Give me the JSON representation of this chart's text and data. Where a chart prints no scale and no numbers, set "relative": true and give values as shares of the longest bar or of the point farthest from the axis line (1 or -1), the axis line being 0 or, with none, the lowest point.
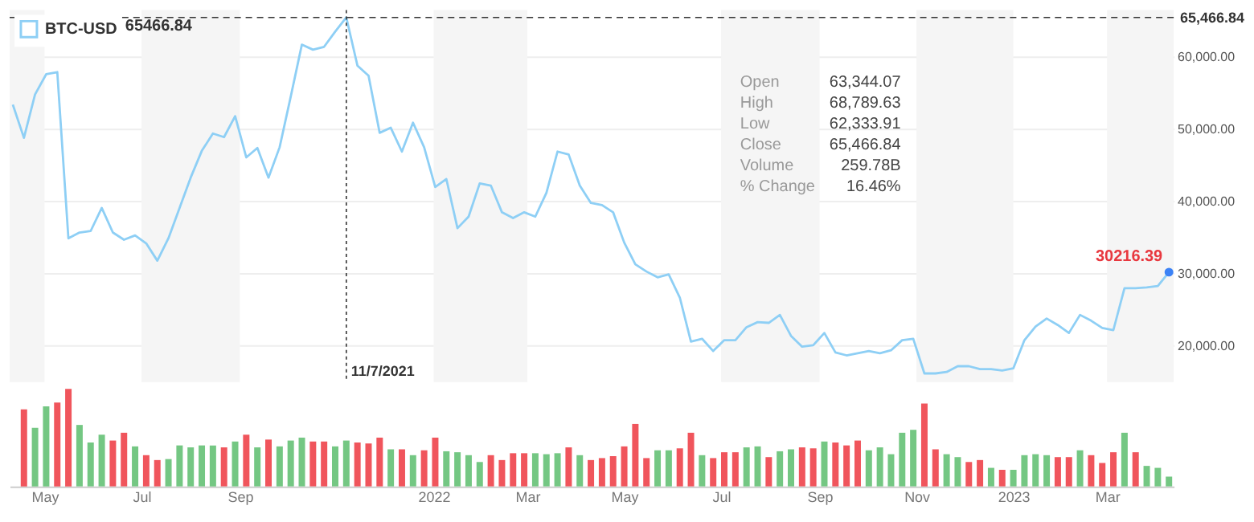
{
  "chart_data": [
    {
      "type": "line",
      "x": [
        "2021-04-11",
        "2021-04-18",
        "2021-04-25",
        "2021-05-02",
        "2021-05-09",
        "2021-05-16",
        "2021-05-23",
        "2021-05-30",
        "2021-06-06",
        "2021-06-13",
        "2021-06-20",
        "2021-06-27",
        "2021-07-04",
        "2021-07-11",
        "2021-07-18",
        "2021-07-25",
        "2021-08-01",
        "2021-08-08",
        "2021-08-15",
        "2021-08-22",
        "2021-08-29",
        "2021-09-05",
        "2021-09-12",
        "2021-09-19",
        "2021-09-26",
        "2021-10-03",
        "2021-10-10",
        "2021-10-17",
        "2021-10-24",
        "2021-10-31",
        "2021-11-07",
        "2021-11-14",
        "2021-11-21",
        "2021-11-28",
        "2021-12-05",
        "2021-12-12",
        "2021-12-19",
        "2021-12-26",
        "2022-01-02",
        "2022-01-09",
        "2022-01-16",
        "2022-01-23",
        "2022-01-30",
        "2022-02-06",
        "2022-02-13",
        "2022-02-20",
        "2022-02-27",
        "2022-03-06",
        "2022-03-13",
        "2022-03-20",
        "2022-03-27",
        "2022-04-03",
        "2022-04-10",
        "2022-04-17",
        "2022-04-24",
        "2022-05-01",
        "2022-05-08",
        "2022-05-15",
        "2022-05-22",
        "2022-05-29",
        "2022-06-05",
        "2022-06-12",
        "2022-06-19",
        "2022-06-26",
        "2022-07-03",
        "2022-07-10",
        "2022-07-17",
        "2022-07-24",
        "2022-07-31",
        "2022-08-07",
        "2022-08-14",
        "2022-08-21",
        "2022-08-28",
        "2022-09-04",
        "2022-09-11",
        "2022-09-18",
        "2022-09-25",
        "2022-10-02",
        "2022-10-09",
        "2022-10-16",
        "2022-10-23",
        "2022-10-30",
        "2022-11-06",
        "2022-11-13",
        "2022-11-20",
        "2022-11-27",
        "2022-12-04",
        "2022-12-11",
        "2022-12-18",
        "2022-12-25",
        "2023-01-01",
        "2023-01-08",
        "2023-01-15",
        "2023-01-22",
        "2023-01-29",
        "2023-02-05",
        "2023-02-12",
        "2023-02-19",
        "2023-02-26",
        "2023-03-05",
        "2023-03-12",
        "2023-03-19",
        "2023-03-26",
        "2023-04-02",
        "2023-04-09"
      ],
      "series": [
        {
          "name": "BTC-USD",
          "color": "#8ecff5",
          "values": [
            53400,
            48800,
            54800,
            57600,
            57900,
            34900,
            35700,
            35900,
            39100,
            35700,
            34700,
            35300,
            34200,
            31800,
            34900,
            39100,
            43300,
            47000,
            49400,
            48900,
            51800,
            46100,
            47400,
            43300,
            47500,
            54500,
            61700,
            61000,
            61400,
            63500,
            65466.84,
            58800,
            57400,
            49500,
            50200,
            46900,
            50900,
            47500,
            42000,
            43100,
            36300,
            37900,
            42500,
            42200,
            38500,
            37700,
            38500,
            37900,
            41200,
            46900,
            46500,
            42200,
            39800,
            39500,
            38500,
            34300,
            31300,
            30300,
            29500,
            29900,
            26700,
            20600,
            21000,
            19300,
            20800,
            20800,
            22600,
            23300,
            23200,
            24300,
            21400,
            19900,
            20100,
            21800,
            19100,
            18700,
            19000,
            19300,
            19000,
            19400,
            20800,
            21000,
            16200,
            16200,
            16400,
            17200,
            17200,
            16800,
            16800,
            16600,
            16900,
            20800,
            22700,
            23800,
            22900,
            21800,
            24300,
            23500,
            22500,
            22200,
            28000,
            28000,
            28100,
            28300,
            30216.39
          ]
        }
      ],
      "xlim": [
        "2021-04-09",
        "2023-04-12"
      ],
      "tick_labels": "y",
      "ylim": [
        15000,
        66500
      ],
      "yticks": [
        {
          "value": 20000,
          "label": "20,000.00"
        },
        {
          "value": 30000,
          "label": "30,000.00"
        },
        {
          "value": 40000,
          "label": "40,000.00"
        },
        {
          "value": 50000,
          "label": "50,000.00"
        },
        {
          "value": 60000,
          "label": "60,000.00"
        }
      ],
      "grid": "y",
      "legend": "top left",
      "ref_lines": [
        {
          "axis": "x",
          "value": "2021-11-07",
          "label": "11/7/2021",
          "line_style": "dotted",
          "color": "#333333"
        },
        {
          "axis": "y",
          "value": 65466.84,
          "label": "65,466.84",
          "line_style": "dashed",
          "color": "#333333"
        }
      ],
      "bands": [
        {
          "axis": "x",
          "from": "2021-04-09",
          "to": "2021-05-01",
          "color": "#f5f5f5"
        },
        {
          "axis": "x",
          "from": "2021-07-01",
          "to": "2021-09-01",
          "color": "#f5f5f5"
        },
        {
          "axis": "x",
          "from": "2022-01-01",
          "to": "2022-03-01",
          "color": "#f5f5f5"
        },
        {
          "axis": "x",
          "from": "2022-07-01",
          "to": "2022-09-01",
          "color": "#f5f5f5"
        },
        {
          "axis": "x",
          "from": "2022-11-01",
          "to": "2023-01-01",
          "color": "#f5f5f5"
        },
        {
          "axis": "x",
          "from": "2023-03-01",
          "to": "2023-04-12",
          "color": "#f5f5f5"
        }
      ],
      "annotations": [
        "65466.84",
        "Open",
        "63,344.07",
        "High",
        "68,789.63",
        "Low",
        "62,333.91",
        "Close",
        "65,466.84",
        "Volume",
        "259.78B",
        "% Change",
        "16.46%",
        {
          "text": "30216.39",
          "x": "2023-04-09",
          "y": 30216.39
        }
      ]
    },
    {
      "type": "bar",
      "relative": true,
      "tick_labels": "x",
      "xlim": [
        "2021-04-09",
        "2023-04-12"
      ],
      "xticks": [
        {
          "value": "2021-05-01",
          "label": "May"
        },
        {
          "value": "2021-07-01",
          "label": "Jul"
        },
        {
          "value": "2021-09-01",
          "label": "Sep"
        },
        {
          "value": "2022-01-01",
          "label": "2022"
        },
        {
          "value": "2022-03-01",
          "label": "Mar"
        },
        {
          "value": "2022-05-01",
          "label": "May"
        },
        {
          "value": "2022-07-01",
          "label": "Jul"
        },
        {
          "value": "2022-09-01",
          "label": "Sep"
        },
        {
          "value": "2022-11-01",
          "label": "Nov"
        },
        {
          "value": "2023-01-01",
          "label": "2023"
        },
        {
          "value": "2023-03-01",
          "label": "Mar"
        }
      ],
      "x": [
        "2021-04-18",
        "2021-04-25",
        "2021-05-02",
        "2021-05-09",
        "2021-05-16",
        "2021-05-23",
        "2021-05-30",
        "2021-06-06",
        "2021-06-13",
        "2021-06-20",
        "2021-06-27",
        "2021-07-04",
        "2021-07-11",
        "2021-07-18",
        "2021-07-25",
        "2021-08-01",
        "2021-08-08",
        "2021-08-15",
        "2021-08-22",
        "2021-08-29",
        "2021-09-05",
        "2021-09-12",
        "2021-09-19",
        "2021-09-26",
        "2021-10-03",
        "2021-10-10",
        "2021-10-17",
        "2021-10-24",
        "2021-10-31",
        "2021-11-07",
        "2021-11-14",
        "2021-11-21",
        "2021-11-28",
        "2021-12-05",
        "2021-12-12",
        "2021-12-19",
        "2021-12-26",
        "2022-01-02",
        "2022-01-09",
        "2022-01-16",
        "2022-01-23",
        "2022-01-30",
        "2022-02-06",
        "2022-02-13",
        "2022-02-20",
        "2022-02-27",
        "2022-03-06",
        "2022-03-13",
        "2022-03-20",
        "2022-03-27",
        "2022-04-03",
        "2022-04-10",
        "2022-04-17",
        "2022-04-24",
        "2022-05-01",
        "2022-05-08",
        "2022-05-15",
        "2022-05-22",
        "2022-05-29",
        "2022-06-05",
        "2022-06-12",
        "2022-06-19",
        "2022-06-26",
        "2022-07-03",
        "2022-07-10",
        "2022-07-17",
        "2022-07-24",
        "2022-07-31",
        "2022-08-07",
        "2022-08-14",
        "2022-08-21",
        "2022-08-28",
        "2022-09-04",
        "2022-09-11",
        "2022-09-18",
        "2022-09-25",
        "2022-10-02",
        "2022-10-09",
        "2022-10-16",
        "2022-10-23",
        "2022-10-30",
        "2022-11-06",
        "2022-11-13",
        "2022-11-20",
        "2022-11-27",
        "2022-12-04",
        "2022-12-11",
        "2022-12-18",
        "2022-12-25",
        "2023-01-01",
        "2023-01-08",
        "2023-01-15",
        "2023-01-22",
        "2023-01-29",
        "2023-02-05",
        "2023-02-12",
        "2023-02-19",
        "2023-02-26",
        "2023-03-05",
        "2023-03-12",
        "2023-03-19",
        "2023-03-26",
        "2023-04-02",
        "2023-04-09"
      ],
      "values": [
        0.79,
        0.6,
        0.82,
        0.86,
        1,
        0.63,
        0.45,
        0.53,
        0.47,
        0.55,
        0.41,
        0.32,
        0.27,
        0.28,
        0.42,
        0.4,
        0.42,
        0.42,
        0.4,
        0.46,
        0.53,
        0.4,
        0.48,
        0.41,
        0.47,
        0.5,
        0.46,
        0.46,
        0.41,
        0.47,
        0.45,
        0.44,
        0.5,
        0.38,
        0.38,
        0.32,
        0.37,
        0.5,
        0.36,
        0.35,
        0.32,
        0.25,
        0.32,
        0.27,
        0.34,
        0.34,
        0.34,
        0.33,
        0.34,
        0.4,
        0.32,
        0.27,
        0.29,
        0.31,
        0.41,
        0.64,
        0.29,
        0.37,
        0.37,
        0.39,
        0.55,
        0.32,
        0.29,
        0.35,
        0.35,
        0.4,
        0.41,
        0.3,
        0.36,
        0.38,
        0.4,
        0.39,
        0.46,
        0.45,
        0.42,
        0.47,
        0.37,
        0.4,
        0.33,
        0.55,
        0.58,
        0.85,
        0.38,
        0.33,
        0.3,
        0.25,
        0.27,
        0.19,
        0.17,
        0.17,
        0.32,
        0.33,
        0.32,
        0.3,
        0.3,
        0.37,
        0.32,
        0.24,
        0.35,
        0.55,
        0.35,
        0.21,
        0.19,
        0.1
      ],
      "colors": [
        "#f0555c",
        "#74c783",
        "#74c783",
        "#f0555c",
        "#f0555c",
        "#74c783",
        "#74c783",
        "#74c783",
        "#f0555c",
        "#f0555c",
        "#74c783",
        "#f0555c",
        "#f0555c",
        "#74c783",
        "#74c783",
        "#74c783",
        "#74c783",
        "#74c783",
        "#f0555c",
        "#74c783",
        "#f0555c",
        "#74c783",
        "#f0555c",
        "#74c783",
        "#74c783",
        "#74c783",
        "#f0555c",
        "#f0555c",
        "#74c783",
        "#74c783",
        "#f0555c",
        "#f0555c",
        "#f0555c",
        "#74c783",
        "#f0555c",
        "#74c783",
        "#f0555c",
        "#f0555c",
        "#74c783",
        "#74c783",
        "#74c783",
        "#74c783",
        "#f0555c",
        "#f0555c",
        "#f0555c",
        "#f0555c",
        "#74c783",
        "#74c783",
        "#74c783",
        "#f0555c",
        "#74c783",
        "#f0555c",
        "#f0555c",
        "#f0555c",
        "#f0555c",
        "#f0555c",
        "#f0555c",
        "#74c783",
        "#74c783",
        "#f0555c",
        "#f0555c",
        "#74c783",
        "#f0555c",
        "#f0555c",
        "#f0555c",
        "#74c783",
        "#74c783",
        "#f0555c",
        "#74c783",
        "#74c783",
        "#f0555c",
        "#f0555c",
        "#74c783",
        "#f0555c",
        "#f0555c",
        "#f0555c",
        "#74c783",
        "#74c783",
        "#74c783",
        "#74c783",
        "#74c783",
        "#f0555c",
        "#f0555c",
        "#74c783",
        "#74c783",
        "#f0555c",
        "#f0555c",
        "#74c783",
        "#f0555c",
        "#74c783",
        "#74c783",
        "#74c783",
        "#74c783",
        "#f0555c",
        "#f0555c",
        "#74c783",
        "#f0555c",
        "#f0555c",
        "#f0555c",
        "#74c783",
        "#f0555c",
        "#74c783",
        "#74c783",
        "#74c783"
      ]
    }
  ]
}
